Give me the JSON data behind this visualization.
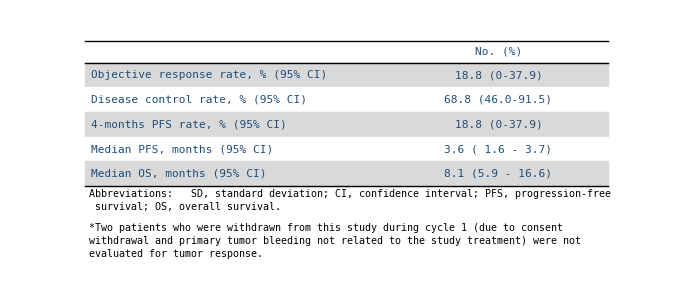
{
  "header_col": "No. (%)",
  "rows": [
    {
      "label": "Objective response rate, % (95% CI)",
      "value": "18.8 (0-37.9)",
      "shaded": true
    },
    {
      "label": "Disease control rate, % (95% CI)",
      "value": "68.8 (46.0-91.5)",
      "shaded": false
    },
    {
      "label": "4-months PFS rate, % (95% CI)",
      "value": "18.8 (0-37.9)",
      "shaded": true
    },
    {
      "label": "Median PFS, months (95% CI)",
      "value": "3.6 ( 1.6 - 3.7)",
      "shaded": false
    },
    {
      "label": "Median OS, months (95% CI)",
      "value": "8.1 (5.9 - 16.6)",
      "shaded": true
    }
  ],
  "footnote1": "Abbreviations:   SD, standard deviation; CI, confidence interval; PFS, progression-free\n survival; OS, overall survival.",
  "footnote2": "*Two patients who were withdrawn from this study during cycle 1 (due to consent\nwithdrawal and primary tumor bleeding not related to the study treatment) were not\nevaluated for tumor response.",
  "shaded_color": "#d9d9d9",
  "white_color": "#ffffff",
  "bg_color": "#ffffff",
  "text_color": "#1f4e79",
  "footnote_color": "#000000",
  "header_line_color": "#000000",
  "font_size": 8.0,
  "header_font_size": 8.0,
  "footnote_font_size": 7.2,
  "col_split": 0.58,
  "fig_width": 6.76,
  "fig_height": 3.05,
  "dpi": 100
}
